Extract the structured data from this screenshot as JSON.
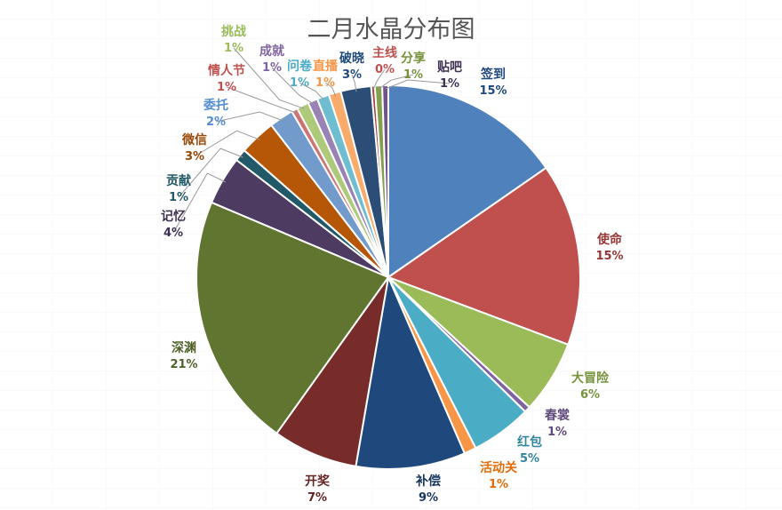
{
  "chart_data": {
    "type": "pie",
    "title": "二月水晶分布图",
    "legend": "none",
    "slices": [
      {
        "name": "签到",
        "pct_label": "15%",
        "value": 15.0,
        "color": "#4f81bd",
        "label_color": "#1f497d"
      },
      {
        "name": "使命",
        "pct_label": "15%",
        "value": 15.0,
        "color": "#c0504d",
        "label_color": "#953735"
      },
      {
        "name": "大冒险",
        "pct_label": "6%",
        "value": 6.0,
        "color": "#9bbb59",
        "label_color": "#76923c"
      },
      {
        "name": "春裳",
        "pct_label": "1%",
        "value": 0.5,
        "color": "#8064a2",
        "label_color": "#604a7b"
      },
      {
        "name": "红包",
        "pct_label": "5%",
        "value": 5.0,
        "color": "#4bacc6",
        "label_color": "#31859c"
      },
      {
        "name": "活动关",
        "pct_label": "1%",
        "value": 1.0,
        "color": "#f79646",
        "label_color": "#e46c0a"
      },
      {
        "name": "补偿",
        "pct_label": "9%",
        "value": 9.0,
        "color": "#1f497d",
        "label_color": "#17375e"
      },
      {
        "name": "开奖",
        "pct_label": "7%",
        "value": 7.0,
        "color": "#772c2a",
        "label_color": "#632523"
      },
      {
        "name": "深渊",
        "pct_label": "21%",
        "value": 21.0,
        "color": "#5f7530",
        "label_color": "#4f6228"
      },
      {
        "name": "记忆",
        "pct_label": "4%",
        "value": 4.0,
        "color": "#4d3b62",
        "label_color": "#3f3151"
      },
      {
        "name": "贡献",
        "pct_label": "1%",
        "value": 1.0,
        "color": "#215968",
        "label_color": "#215968"
      },
      {
        "name": "微信",
        "pct_label": "3%",
        "value": 3.0,
        "color": "#b65708",
        "label_color": "#984807"
      },
      {
        "name": "委托",
        "pct_label": "2%",
        "value": 2.0,
        "color": "#729aca",
        "label_color": "#558ed5"
      },
      {
        "name": "情人节",
        "pct_label": "1%",
        "value": 0.5,
        "color": "#cd7371",
        "label_color": "#c0504d"
      },
      {
        "name": "挑战",
        "pct_label": "1%",
        "value": 1.0,
        "color": "#afc97a",
        "label_color": "#9bbb59"
      },
      {
        "name": "成就",
        "pct_label": "1%",
        "value": 0.8,
        "color": "#9983b5",
        "label_color": "#8064a2"
      },
      {
        "name": "问卷",
        "pct_label": "1%",
        "value": 1.0,
        "color": "#6fbdd1",
        "label_color": "#4bacc6"
      },
      {
        "name": "直播",
        "pct_label": "1%",
        "value": 1.0,
        "color": "#f9ab6b",
        "label_color": "#f79646"
      },
      {
        "name": "破晓",
        "pct_label": "3%",
        "value": 2.5,
        "color": "#2c4d76",
        "label_color": "#1f497d"
      },
      {
        "name": "主线",
        "pct_label": "0%",
        "value": 0.3,
        "color": "#a54441",
        "label_color": "#c0504d"
      },
      {
        "name": "分享",
        "pct_label": "1%",
        "value": 0.6,
        "color": "#84a04c",
        "label_color": "#76923c"
      },
      {
        "name": "贴吧",
        "pct_label": "1%",
        "value": 0.5,
        "color": "#6d5589",
        "label_color": "#3f3151"
      }
    ]
  }
}
